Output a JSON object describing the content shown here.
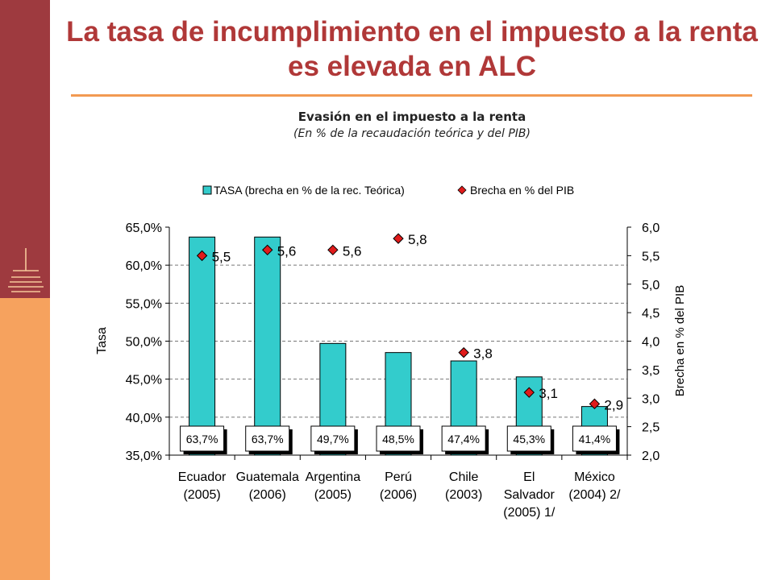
{
  "slide": {
    "title": "La tasa de incumplimiento en el impuesto a la renta es elevada en ALC"
  },
  "colors": {
    "sidebar_dark": "#9e3a3f",
    "sidebar_light": "#f6a25e",
    "title": "#b03838",
    "rule": "#f29a52",
    "bar": "#33cccc",
    "marker": "#e01b1b"
  },
  "chart_data": {
    "type": "bar",
    "title": "Evasión en el impuesto a la renta",
    "subtitle": "(En % de la recaudación teórica y del PIB)",
    "categories": [
      [
        "Ecuador",
        "(2005)"
      ],
      [
        "Guatemala",
        "(2006)"
      ],
      [
        "Argentina",
        "(2005)"
      ],
      [
        "Perú",
        "(2006)"
      ],
      [
        "Chile",
        "(2003)"
      ],
      [
        "El",
        "Salvador",
        "(2005) 1/"
      ],
      [
        "México",
        "(2004) 2/"
      ]
    ],
    "series": [
      {
        "name": "TASA (brecha en % de la rec. Teórica)",
        "type": "bar",
        "axis": "left",
        "values": [
          63.7,
          63.7,
          49.7,
          48.5,
          47.4,
          45.3,
          41.4
        ],
        "labels": [
          "63,7%",
          "63,7%",
          "49,7%",
          "48,5%",
          "47,4%",
          "45,3%",
          "41,4%"
        ]
      },
      {
        "name": "Brecha en % del PIB",
        "type": "scatter",
        "marker": "diamond",
        "axis": "right",
        "values": [
          5.5,
          5.6,
          5.6,
          5.8,
          3.8,
          3.1,
          2.9
        ],
        "labels": [
          "5,5",
          "5,6",
          "5,6",
          "5,8",
          "3,8",
          "3,1",
          "2,9"
        ]
      }
    ],
    "ylabel": "Tasa",
    "y2label": "Brecha en % del PIB",
    "ylim": [
      35,
      65
    ],
    "y2lim": [
      2,
      6
    ],
    "yticks": [
      "35,0%",
      "40,0%",
      "45,0%",
      "50,0%",
      "55,0%",
      "60,0%",
      "65,0%"
    ],
    "y2ticks": [
      "2,0",
      "2,5",
      "3,0",
      "3,5",
      "4,0",
      "4,5",
      "5,0",
      "5,5",
      "6,0"
    ],
    "grid": true,
    "legend": "top"
  }
}
